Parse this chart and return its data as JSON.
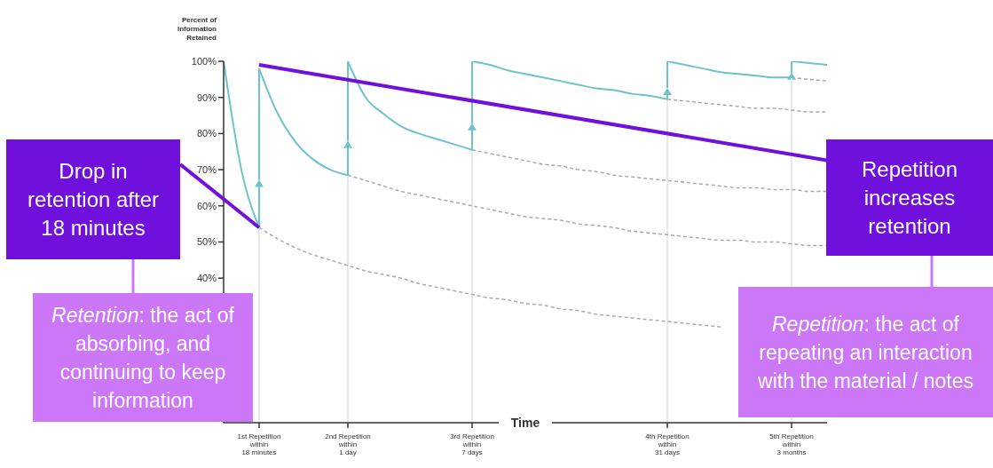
{
  "chart_data": {
    "type": "line",
    "ylabel": "Percent of Information Retained",
    "xlabel": "Time",
    "categories": [
      null,
      null,
      "1st Repetition\nwithin\n18 minutes",
      null,
      null,
      null,
      null,
      "2nd Repetition\nwithin\n1 day",
      null,
      null,
      null,
      null,
      null,
      null,
      "3rd Repetition\nwithin\n7 days",
      null,
      null,
      null,
      null,
      null,
      null,
      null,
      null,
      null,
      null,
      "4th Repetition\nwithin\n31 days",
      null,
      null,
      null,
      null,
      null,
      null,
      "5th Repetition\nwithin\n3 months",
      null,
      null
    ],
    "ylim": [
      0,
      100
    ],
    "yticks": [
      {
        "value": 40,
        "label": "40%"
      },
      {
        "value": 50,
        "label": "50%"
      },
      {
        "value": 60,
        "label": "60%"
      },
      {
        "value": 70,
        "label": "70%"
      },
      {
        "value": 80,
        "label": "80%"
      },
      {
        "value": 90,
        "label": "90%"
      },
      {
        "value": 100,
        "label": "100%"
      }
    ],
    "grid": "x",
    "marker": "none",
    "line_style": "solid",
    "series": [
      {
        "color": "#6cc3cc",
        "values": [
          100,
          70,
          54,
          null,
          null,
          null,
          null,
          null,
          null,
          null,
          null,
          null,
          null,
          null,
          null,
          null,
          null,
          null,
          null,
          null,
          null,
          null,
          null,
          null,
          null,
          null,
          null,
          null,
          null,
          null,
          null,
          null,
          null,
          null,
          null
        ]
      },
      {
        "color": "#6cc3cc",
        "values": [
          null,
          null,
          98,
          86,
          78,
          73,
          70,
          68.5,
          null,
          null,
          null,
          null,
          null,
          null,
          null,
          null,
          null,
          null,
          null,
          null,
          null,
          null,
          null,
          null,
          null,
          null,
          null,
          null,
          null,
          null,
          null,
          null,
          null,
          null,
          null
        ]
      },
      {
        "color": "#6cc3cc",
        "values": [
          null,
          null,
          null,
          null,
          null,
          null,
          null,
          100,
          90,
          85.5,
          82,
          80,
          78.5,
          77,
          75.5,
          null,
          null,
          null,
          null,
          null,
          null,
          null,
          null,
          null,
          null,
          null,
          null,
          null,
          null,
          null,
          null,
          null,
          null,
          null,
          null
        ]
      },
      {
        "color": "#6cc3cc",
        "values": [
          null,
          null,
          null,
          null,
          null,
          null,
          null,
          null,
          null,
          null,
          null,
          null,
          null,
          null,
          100,
          99,
          97.5,
          96.5,
          95.5,
          94.5,
          93.5,
          92.5,
          92,
          91,
          90.5,
          89.5,
          null,
          null,
          null,
          null,
          null,
          null,
          null,
          null,
          null
        ]
      },
      {
        "color": "#6cc3cc",
        "values": [
          null,
          null,
          null,
          null,
          null,
          null,
          null,
          null,
          null,
          null,
          null,
          null,
          null,
          null,
          null,
          null,
          null,
          null,
          null,
          null,
          null,
          null,
          null,
          null,
          null,
          100,
          99,
          98,
          97,
          96.5,
          96,
          95.5,
          95.5,
          null,
          null
        ]
      },
      {
        "color": "#6cc3cc",
        "values": [
          null,
          null,
          null,
          null,
          null,
          null,
          null,
          null,
          null,
          null,
          null,
          null,
          null,
          null,
          null,
          null,
          null,
          null,
          null,
          null,
          null,
          null,
          null,
          null,
          null,
          null,
          null,
          null,
          null,
          null,
          null,
          null,
          100,
          99.5,
          99
        ]
      },
      {
        "color": "#aaaaaa",
        "line_style": "dashed",
        "values": [
          null,
          null,
          54,
          51,
          48.5,
          46.5,
          45,
          43.5,
          42,
          41,
          40,
          38.5,
          37.5,
          36.5,
          35.5,
          34.5,
          34,
          33,
          32.5,
          31.5,
          31,
          30,
          29.5,
          29,
          28.5,
          28,
          27.5,
          27,
          26.5,
          null,
          null,
          null,
          null,
          null,
          null
        ]
      },
      {
        "color": "#aaaaaa",
        "line_style": "dashed",
        "values": [
          null,
          null,
          null,
          null,
          null,
          null,
          null,
          68.5,
          67,
          65.5,
          64,
          63,
          62,
          61,
          60,
          59,
          58,
          57,
          56.5,
          56,
          55,
          54.5,
          54,
          53,
          52.5,
          52,
          51.5,
          51,
          50.5,
          50.5,
          50,
          50,
          49.5,
          49,
          49
        ]
      },
      {
        "color": "#aaaaaa",
        "line_style": "dashed",
        "values": [
          null,
          null,
          null,
          null,
          null,
          null,
          null,
          null,
          null,
          null,
          null,
          null,
          null,
          null,
          75.5,
          74.5,
          73.5,
          72.5,
          71.5,
          71,
          70,
          69.5,
          68.5,
          68,
          67.5,
          67,
          66.5,
          66,
          65.5,
          65,
          65,
          64.5,
          64.5,
          64,
          64
        ]
      },
      {
        "color": "#aaaaaa",
        "line_style": "dashed",
        "values": [
          null,
          null,
          null,
          null,
          null,
          null,
          null,
          null,
          null,
          null,
          null,
          null,
          null,
          null,
          null,
          null,
          null,
          null,
          null,
          null,
          null,
          null,
          null,
          null,
          null,
          89.5,
          89,
          88.5,
          88,
          87.5,
          87,
          87,
          86.5,
          86,
          86
        ]
      },
      {
        "color": "#aaaaaa",
        "line_style": "dashed",
        "values": [
          null,
          null,
          null,
          null,
          null,
          null,
          null,
          null,
          null,
          null,
          null,
          null,
          null,
          null,
          null,
          null,
          null,
          null,
          null,
          null,
          null,
          null,
          null,
          null,
          null,
          null,
          null,
          null,
          null,
          null,
          null,
          null,
          95.5,
          95,
          94.5
        ]
      }
    ],
    "annotations": [
      {
        "text": "Drop in retention after 18 minutes",
        "x": "1st Repetition\nwithin\n18 minutes",
        "y": 54
      },
      {
        "text": "Repetition increases retention",
        "x": "1st Repetition\nwithin\n18 minutes",
        "y": 99
      },
      "Retention: the act of absorbing, and continuing to keep information",
      "Repetition: the act of repeating an interaction with the material / notes"
    ]
  }
}
